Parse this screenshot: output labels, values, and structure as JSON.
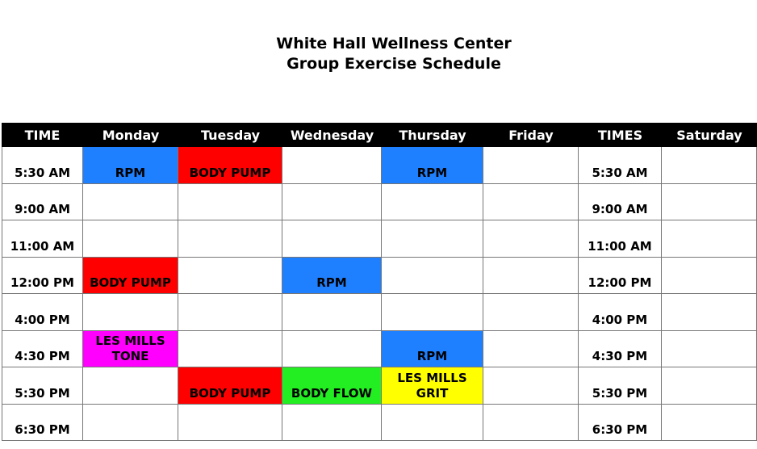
{
  "header": {
    "title": "White Hall Wellness Center",
    "subtitle": "Group Exercise Schedule"
  },
  "table": {
    "columns": [
      "TIME",
      "Monday",
      "Tuesday",
      "Wednesday",
      "Thursday",
      "Friday",
      "TIMES",
      "Saturday"
    ],
    "rows": [
      {
        "time": "5:30 AM",
        "classes": {
          "Monday": {
            "label": [
              "RPM"
            ],
            "color": "#1f80ff"
          },
          "Tuesday": {
            "label": [
              "BODY PUMP"
            ],
            "color": "#ff0000"
          },
          "Thursday": {
            "label": [
              "RPM"
            ],
            "color": "#1f80ff"
          }
        }
      },
      {
        "time": "9:00 AM",
        "classes": {}
      },
      {
        "time": "11:00 AM",
        "classes": {}
      },
      {
        "time": "12:00 PM",
        "classes": {
          "Monday": {
            "label": [
              "BODY PUMP"
            ],
            "color": "#ff0000"
          },
          "Wednesday": {
            "label": [
              "RPM"
            ],
            "color": "#1f80ff"
          }
        }
      },
      {
        "time": "4:00 PM",
        "classes": {}
      },
      {
        "time": "4:30 PM",
        "classes": {
          "Monday": {
            "label": [
              "LES MILLS",
              "TONE"
            ],
            "color": "#ff00ff"
          },
          "Thursday": {
            "label": [
              "RPM"
            ],
            "color": "#1f80ff"
          }
        }
      },
      {
        "time": "5:30 PM",
        "classes": {
          "Tuesday": {
            "label": [
              "BODY PUMP"
            ],
            "color": "#ff0000"
          },
          "Wednesday": {
            "label": [
              "BODY FLOW"
            ],
            "color": "#22ee22"
          },
          "Thursday": {
            "label": [
              "LES MILLS",
              "GRIT"
            ],
            "color": "#ffff00"
          }
        }
      },
      {
        "time": "6:30 PM",
        "classes": {}
      }
    ]
  }
}
